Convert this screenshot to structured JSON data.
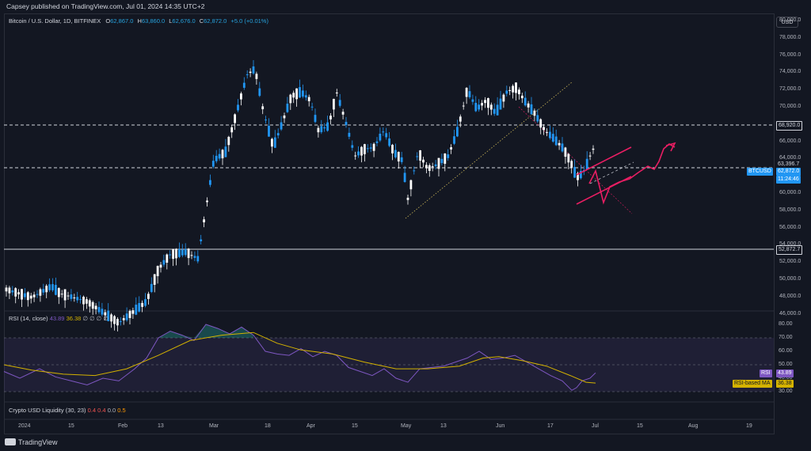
{
  "header": {
    "publisher_text": "Capsey published on TradingView.com, Jul 01, 2024 14:35 UTC+2"
  },
  "legend": {
    "symbol": "Bitcoin / U.S. Dollar, 1D, BITFINEX",
    "o_label": "O",
    "o_value": "62,867.0",
    "h_label": "H",
    "h_value": "63,860.0",
    "l_label": "L",
    "l_value": "62,676.0",
    "c_label": "C",
    "c_value": "62,872.0",
    "change": "+5.0 (+0.01%)"
  },
  "currency": "USD",
  "price_axis": {
    "labels": [
      "80,000.0",
      "78,000.0",
      "76,000.0",
      "74,000.0",
      "72,000.0",
      "70,000.0",
      "68,000.0",
      "66,000.0",
      "64,000.0",
      "62,000.0",
      "60,000.0",
      "58,000.0",
      "56,000.0",
      "54,000.0",
      "52,000.0",
      "50,000.0",
      "48,000.0",
      "46,000.0"
    ]
  },
  "price_tags": {
    "level_high": "68,920.0",
    "level_mid": "63,396.7",
    "current": "62,872.0",
    "countdown": "11:24:46",
    "level_low": "52,872.7",
    "symbol_tag": "BTCUSD"
  },
  "rsi": {
    "title": "RSI (14, close)",
    "value": "43.89",
    "ma_value": "36.38",
    "extras": "∅ ∅ ∅ ∅",
    "axis_labels": [
      "80.00",
      "70.00",
      "60.00",
      "50.00",
      "40.00",
      "30.00"
    ],
    "tag_label": "RSI",
    "ma_tag_label": "RSI-based MA"
  },
  "liquidity": {
    "title": "Crypto USD Liquidity (30, 23)",
    "v1": "0.4",
    "v2": "0.4",
    "v3": "0.0",
    "v4": "0.5"
  },
  "time_axis": {
    "labels": [
      "2024",
      "15",
      "Feb",
      "13",
      "Mar",
      "18",
      "Apr",
      "15",
      "May",
      "13",
      "Jun",
      "17",
      "Jul",
      "15",
      "Aug",
      "19"
    ]
  },
  "footer": {
    "brand": "TradingView"
  },
  "colors": {
    "up": "#2196f3",
    "down": "#ffffff",
    "accent": "#e91e63",
    "rsi_line": "#7e57c2",
    "rsi_ma": "#d4b200",
    "level": "#d1d4dc"
  }
}
